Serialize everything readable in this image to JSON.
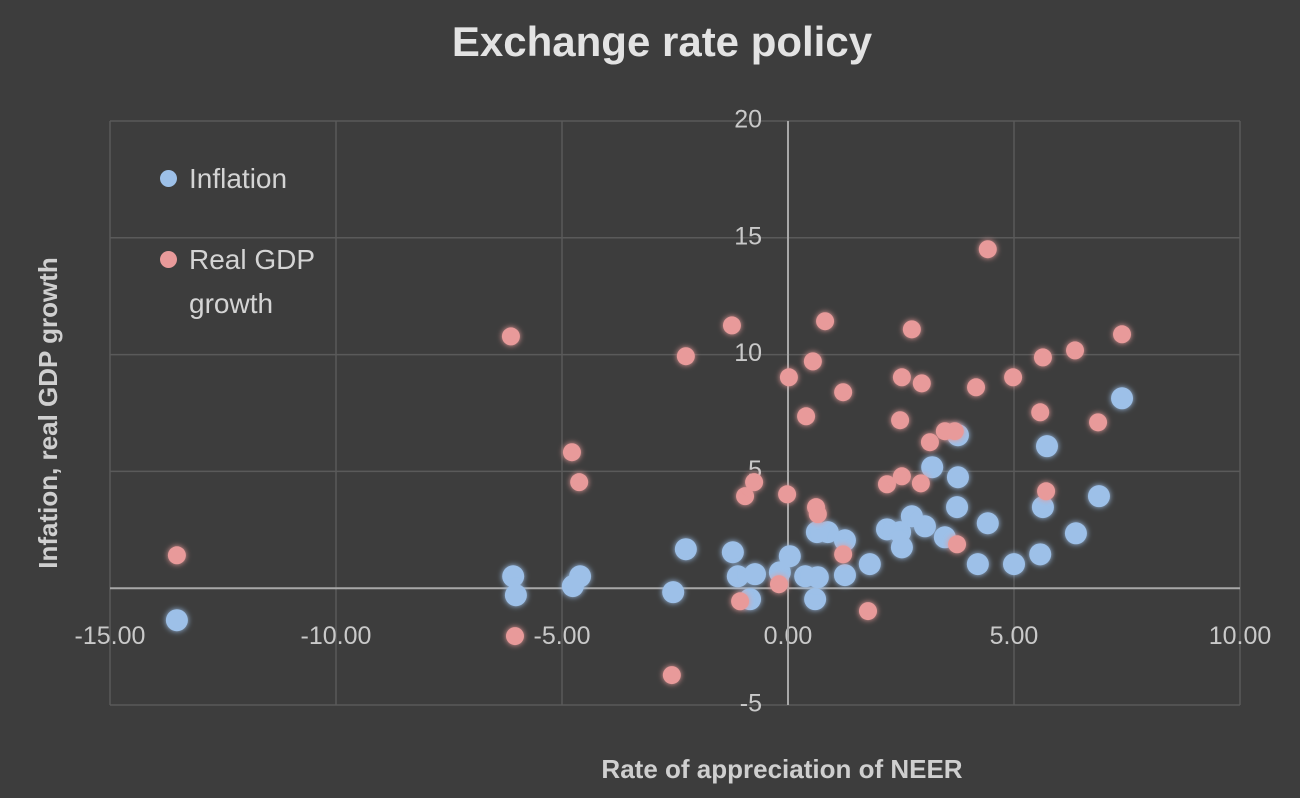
{
  "chart_data": {
    "type": "scatter",
    "title": "Exchange rate policy",
    "x_label": "Rate of appreciation of NEER",
    "y_label": "Infation, real GDP growth",
    "xlim": [
      -15,
      10
    ],
    "ylim": [
      -5,
      20
    ],
    "xticks": [
      {
        "value": -15,
        "label": "-15.00"
      },
      {
        "value": -10,
        "label": "-10.00"
      },
      {
        "value": -5,
        "label": "-5.00"
      },
      {
        "value": 0,
        "label": "0.00"
      },
      {
        "value": 5,
        "label": "5.00"
      },
      {
        "value": 10,
        "label": "10.00"
      }
    ],
    "yticks": [
      -5,
      5,
      10,
      15,
      20
    ],
    "grid": true,
    "legend": "upper-left",
    "series": [
      {
        "name": "Inflation",
        "color": "#9dc0e8",
        "x": [
          -13.52,
          -6.08,
          -6.02,
          -4.76,
          -4.6,
          -2.54,
          -2.26,
          -1.22,
          -1.11,
          -0.84,
          -0.73,
          -0.18,
          0.04,
          0.38,
          0.6,
          0.66,
          0.64,
          0.88,
          1.26,
          1.26,
          1.81,
          2.19,
          2.48,
          2.52,
          2.74,
          3.03,
          3.19,
          3.47,
          3.74,
          3.76,
          3.76,
          4.2,
          4.42,
          5.0,
          5.58,
          5.64,
          5.73,
          6.37,
          6.88,
          7.39
        ],
        "values": [
          -1.37,
          0.51,
          -0.3,
          0.09,
          0.51,
          -0.17,
          1.67,
          1.54,
          0.51,
          -0.47,
          0.6,
          0.68,
          1.37,
          0.51,
          -0.47,
          0.47,
          2.4,
          2.4,
          2.05,
          0.56,
          1.03,
          2.52,
          2.4,
          1.75,
          3.08,
          2.65,
          5.18,
          2.18,
          3.47,
          4.75,
          6.55,
          1.03,
          2.78,
          1.03,
          1.45,
          3.47,
          6.08,
          2.35,
          3.94,
          8.13
        ]
      },
      {
        "name": "Real GDP growth",
        "color": "#e89a9a",
        "x": [
          -13.52,
          -6.13,
          -6.04,
          -4.78,
          -4.62,
          -2.57,
          -2.26,
          -1.24,
          -1.06,
          -0.95,
          -0.75,
          -0.2,
          -0.02,
          0.02,
          0.4,
          0.55,
          0.62,
          0.66,
          0.82,
          1.22,
          1.22,
          1.77,
          2.19,
          2.48,
          2.52,
          2.52,
          2.74,
          2.96,
          2.94,
          3.14,
          3.47,
          3.69,
          3.74,
          4.16,
          4.42,
          4.98,
          5.58,
          5.64,
          5.71,
          6.35,
          6.86,
          7.39
        ],
        "values": [
          1.41,
          10.78,
          -2.05,
          5.82,
          4.54,
          -3.72,
          9.93,
          11.25,
          -0.56,
          3.94,
          4.54,
          0.17,
          4.02,
          9.03,
          7.36,
          9.71,
          3.47,
          3.17,
          11.43,
          8.39,
          1.45,
          -0.98,
          4.45,
          7.19,
          9.03,
          4.79,
          11.08,
          8.77,
          4.49,
          6.25,
          6.72,
          6.72,
          1.88,
          8.6,
          14.51,
          9.03,
          7.53,
          9.88,
          4.15,
          10.18,
          7.1,
          10.87
        ]
      }
    ]
  }
}
